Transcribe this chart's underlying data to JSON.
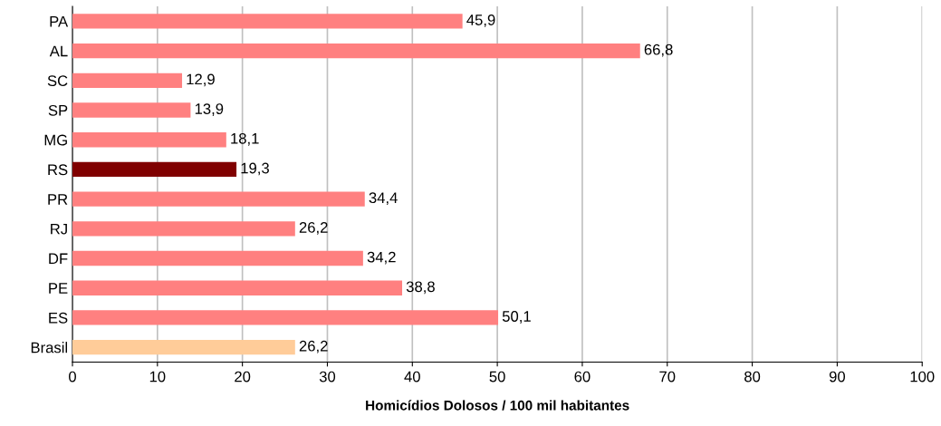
{
  "chart_data": {
    "type": "bar",
    "orientation": "horizontal",
    "xlabel": "Homicídios Dolosos / 100 mil habitantes",
    "categories": [
      "PA",
      "AL",
      "SC",
      "SP",
      "MG",
      "RS",
      "PR",
      "RJ",
      "DF",
      "PE",
      "ES",
      "Brasil"
    ],
    "values": [
      45.9,
      66.8,
      12.9,
      13.9,
      18.1,
      19.3,
      34.4,
      26.2,
      34.2,
      38.8,
      50.1,
      26.2
    ],
    "value_labels": [
      "45,9",
      "66,8",
      "12,9",
      "13,9",
      "18,1",
      "19,3",
      "34,4",
      "26,2",
      "34,2",
      "38,8",
      "50,1",
      "26,2"
    ],
    "colors": [
      "#ff8080",
      "#ff8080",
      "#ff8080",
      "#ff8080",
      "#ff8080",
      "#800000",
      "#ff8080",
      "#ff8080",
      "#ff8080",
      "#ff8080",
      "#ff8080",
      "#ffcc99"
    ],
    "xlim": [
      0,
      100
    ],
    "xticks": [
      0,
      10,
      20,
      30,
      40,
      50,
      60,
      70,
      80,
      90,
      100
    ],
    "grid": "x"
  }
}
